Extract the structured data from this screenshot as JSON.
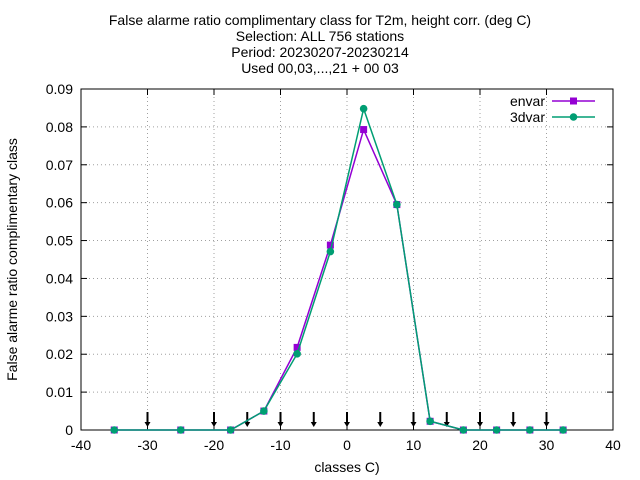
{
  "title_lines": [
    "False alarme ratio complimentary class  for T2m, height corr. (deg C)",
    "Selection: ALL    756 stations",
    "Period: 20230207-20230214",
    "Used 00,03,...,21 + 00 03"
  ],
  "chart_data": {
    "type": "line",
    "xlabel": "classes C)",
    "ylabel": "False alarme ratio complimentary class",
    "xlim": [
      -40,
      40
    ],
    "ylim": [
      0,
      0.09
    ],
    "xticks": [
      -40,
      -30,
      -20,
      -10,
      0,
      10,
      20,
      30,
      40
    ],
    "xtick_labels": [
      "-40",
      "-30",
      "-20",
      "-10",
      "0",
      "10",
      "20",
      "30",
      "40"
    ],
    "yticks": [
      0,
      0.01,
      0.02,
      0.03,
      0.04,
      0.05,
      0.06,
      0.07,
      0.08,
      0.09
    ],
    "ytick_labels": [
      "0",
      "0.01",
      "0.02",
      "0.03",
      "0.04",
      "0.05",
      "0.06",
      "0.07",
      "0.08",
      "0.09"
    ],
    "grid": true,
    "legend_position": "top-right",
    "series": [
      {
        "name": "envar",
        "color": "#9400d3",
        "marker": "square",
        "x": [
          -35,
          -25,
          -17.5,
          -12.5,
          -7.5,
          -2.5,
          2.5,
          7.5,
          12.5,
          17.5,
          22.5,
          27.5,
          32.5
        ],
        "y": [
          0,
          0,
          0,
          0.005,
          0.0218,
          0.0488,
          0.0793,
          0.0595,
          0.0023,
          0,
          0,
          0,
          0
        ]
      },
      {
        "name": "3dvar",
        "color": "#009e73",
        "marker": "circle",
        "x": [
          -35,
          -25,
          -17.5,
          -12.5,
          -7.5,
          -2.5,
          2.5,
          7.5,
          12.5,
          17.5,
          22.5,
          27.5,
          32.5
        ],
        "y": [
          0,
          0,
          0,
          0.005,
          0.0201,
          0.0471,
          0.0848,
          0.0595,
          0.0023,
          0,
          0,
          0,
          0
        ]
      }
    ],
    "arrow_markers_x": [
      -30,
      -20,
      -15,
      -10,
      -5,
      0,
      5,
      10,
      15,
      20,
      25,
      30
    ]
  }
}
